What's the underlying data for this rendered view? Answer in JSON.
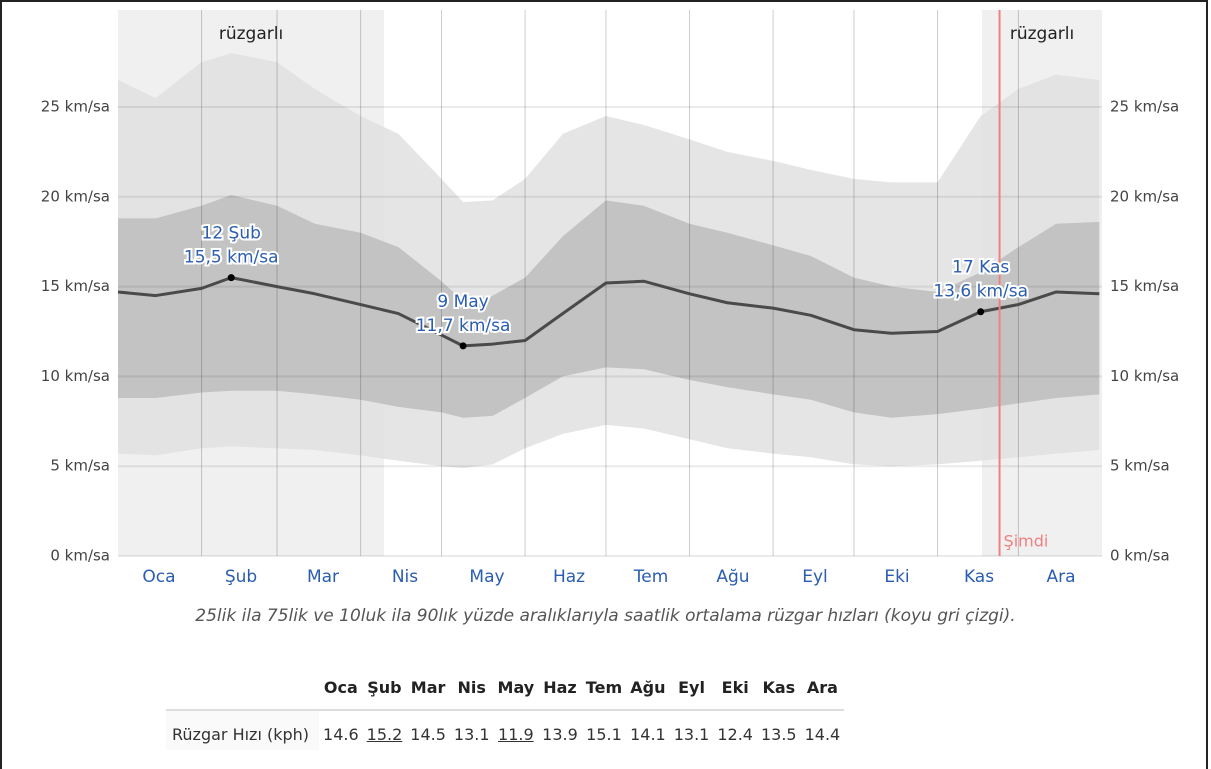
{
  "chart_data": {
    "type": "band-line",
    "caption": "25lik ila 75lik ve 10luk ila 90lık yüzde aralıklarıyla saatlik ortalama rüzgar hızları (koyu gri çizgi).",
    "x": [
      1,
      15,
      32,
      43,
      60,
      74,
      91,
      105,
      121,
      129,
      140,
      152,
      166,
      182,
      196,
      213,
      227,
      244,
      258,
      274,
      288,
      305,
      321,
      335,
      349,
      365
    ],
    "series": [
      {
        "name": "p90",
        "color": "#e0e0e0",
        "values": [
          26.5,
          25.5,
          27.5,
          28.0,
          27.5,
          26.0,
          24.5,
          23.5,
          21.0,
          19.7,
          19.8,
          21.0,
          23.5,
          24.5,
          24.0,
          23.2,
          22.5,
          22.0,
          21.5,
          21.0,
          20.8,
          20.8,
          24.5,
          26.0,
          26.8,
          26.5
        ]
      },
      {
        "name": "p75",
        "color": "#bdbdbd",
        "values": [
          18.8,
          18.8,
          19.5,
          20.1,
          19.5,
          18.5,
          18.0,
          17.2,
          15.3,
          14.2,
          14.5,
          15.5,
          17.8,
          19.8,
          19.5,
          18.5,
          18.0,
          17.3,
          16.7,
          15.5,
          15.0,
          14.7,
          15.8,
          17.2,
          18.5,
          18.6
        ]
      },
      {
        "name": "mean",
        "color": "#4a4a4a",
        "values": [
          14.7,
          14.5,
          14.9,
          15.5,
          15.0,
          14.6,
          14.0,
          13.5,
          12.3,
          11.7,
          11.8,
          12.0,
          13.5,
          15.2,
          15.3,
          14.6,
          14.1,
          13.8,
          13.4,
          12.6,
          12.4,
          12.5,
          13.6,
          14.0,
          14.7,
          14.6
        ]
      },
      {
        "name": "p25",
        "color": "#bdbdbd",
        "values": [
          8.8,
          8.8,
          9.1,
          9.2,
          9.2,
          9.0,
          8.7,
          8.3,
          8.0,
          7.7,
          7.8,
          8.8,
          10.0,
          10.5,
          10.4,
          9.8,
          9.4,
          9.0,
          8.7,
          8.0,
          7.7,
          7.9,
          8.2,
          8.5,
          8.8,
          9.0
        ]
      },
      {
        "name": "p10",
        "color": "#e0e0e0",
        "values": [
          5.7,
          5.6,
          6.0,
          6.1,
          6.0,
          5.9,
          5.6,
          5.3,
          5.0,
          4.9,
          5.1,
          6.0,
          6.8,
          7.3,
          7.1,
          6.5,
          6.0,
          5.7,
          5.5,
          5.1,
          5.0,
          5.1,
          5.3,
          5.5,
          5.7,
          5.9
        ]
      }
    ],
    "xlim": [
      1,
      366
    ],
    "xticks": [
      32,
      60,
      91,
      121,
      152,
      182,
      213,
      244,
      274,
      305,
      335
    ],
    "categories": [
      "Oca",
      "Şub",
      "Mar",
      "Nis",
      "May",
      "Haz",
      "Tem",
      "Ağu",
      "Eyl",
      "Eki",
      "Kas",
      "Ara"
    ],
    "ylim": [
      0,
      30.4
    ],
    "yticks": [
      {
        "value": 0,
        "label": "0 km/sa"
      },
      {
        "value": 5,
        "label": "5 km/sa"
      },
      {
        "value": 10,
        "label": "10 km/sa"
      },
      {
        "value": 15,
        "label": "15 km/sa"
      },
      {
        "value": 20,
        "label": "20 km/sa"
      },
      {
        "value": 25,
        "label": "25 km/sa"
      }
    ],
    "grid": true,
    "windy_periods": [
      {
        "label": "rüzgarlı",
        "start": 1,
        "end": 99.7
      },
      {
        "label": "rüzgarlı",
        "start": 321.5,
        "end": 366
      }
    ],
    "now": {
      "label": "Şimdi",
      "x": 328
    },
    "annotations": [
      {
        "x": 43,
        "value": 15.5,
        "date": "12 Şub",
        "label": "15,5 km/sa"
      },
      {
        "x": 129,
        "value": 11.7,
        "date": "9 May",
        "label": "11,7 km/sa"
      },
      {
        "x": 321,
        "value": 13.6,
        "date": "17 Kas",
        "label": "13,6 km/sa"
      }
    ]
  },
  "table": {
    "header": [
      "Oca",
      "Şub",
      "Mar",
      "Nis",
      "May",
      "Haz",
      "Tem",
      "Ağu",
      "Eyl",
      "Eki",
      "Kas",
      "Ara"
    ],
    "row_label": "Rüzgar Hızı (kph)",
    "values": [
      14.6,
      15.2,
      14.5,
      13.1,
      11.9,
      13.9,
      15.1,
      14.1,
      13.1,
      12.4,
      13.5,
      14.4
    ],
    "underlined": [
      1,
      4
    ]
  }
}
